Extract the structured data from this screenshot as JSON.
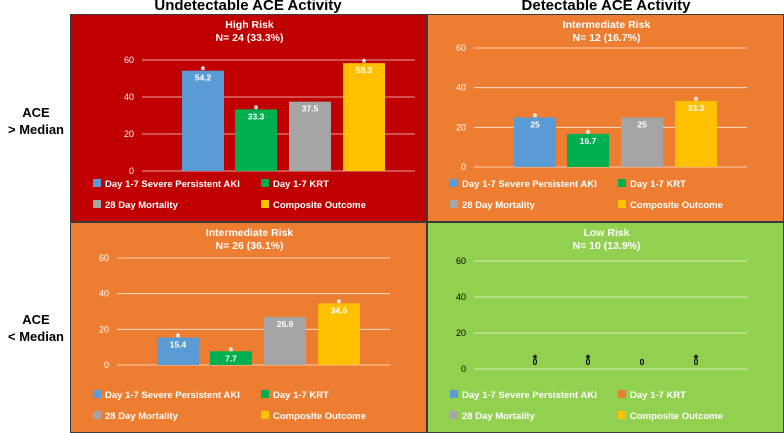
{
  "column_headers": [
    "Undetectable ACE Activity",
    "Detectable ACE Activity"
  ],
  "row_labels": [
    {
      "line1": "ACE",
      "line2": "> Median"
    },
    {
      "line1": "ACE",
      "line2": "< Median"
    }
  ],
  "colors": {
    "high_risk_bg": "#c00000",
    "intermediate_risk_bg": "#ed7d31",
    "low_risk_bg": "#92d050"
  },
  "chart_data": [
    {
      "type": "bar",
      "title": "High Risk",
      "subtitle": "N= 24 (33.3%)",
      "position": "top-left",
      "background": "#c00000",
      "categories": [
        "Day 1-7 Severe Persistent AKI",
        "Day 1-7 KRT",
        "28 Day Mortality",
        "Composite Outcome"
      ],
      "values": [
        54.2,
        33.3,
        37.5,
        58.3
      ],
      "labels": [
        "54.2",
        "33.3",
        "37.5",
        "58.3"
      ],
      "significant": [
        true,
        true,
        false,
        true
      ],
      "colors": [
        "#5b9bd5",
        "#00b050",
        "#a5a5a5",
        "#ffc000"
      ],
      "ylim": [
        0,
        60
      ],
      "yticks": [
        0,
        20,
        40,
        60
      ],
      "grid": true,
      "legend": "bottom"
    },
    {
      "type": "bar",
      "title": "Intermediate Risk",
      "subtitle": "N= 12 (16.7%)",
      "position": "top-right",
      "background": "#ed7d31",
      "categories": [
        "Day 1-7 Severe Persistent AKI",
        "Day 1-7 KRT",
        "28 Day Mortality",
        "Composite Outcome"
      ],
      "values": [
        25,
        16.7,
        25,
        33.3
      ],
      "labels": [
        "25",
        "16.7",
        "25",
        "33.3"
      ],
      "significant": [
        true,
        true,
        false,
        true
      ],
      "colors": [
        "#5b9bd5",
        "#00b050",
        "#a5a5a5",
        "#ffc000"
      ],
      "ylim": [
        0,
        60
      ],
      "yticks": [
        0,
        20,
        40,
        60
      ],
      "grid": true,
      "legend": "bottom"
    },
    {
      "type": "bar",
      "title": "Intermediate Risk",
      "subtitle": "N= 26 (36.1%)",
      "position": "bottom-left",
      "background": "#ed7d31",
      "categories": [
        "Day 1-7 Severe Persistent AKI",
        "Day 1-7 KRT",
        "28 Day Mortality",
        "Composite Outcome"
      ],
      "values": [
        15.4,
        7.7,
        26.9,
        34.6
      ],
      "labels": [
        "15.4",
        "7.7",
        "26.9",
        "34.6"
      ],
      "significant": [
        true,
        true,
        false,
        true
      ],
      "colors": [
        "#5b9bd5",
        "#00b050",
        "#a5a5a5",
        "#ffc000"
      ],
      "ylim": [
        0,
        60
      ],
      "yticks": [
        0,
        20,
        40,
        60
      ],
      "grid": true,
      "legend": "bottom"
    },
    {
      "type": "bar",
      "title": "Low Risk",
      "subtitle": "N= 10 (13.9%)",
      "position": "bottom-right",
      "background": "#92d050",
      "categories": [
        "Day 1-7 Severe Persistent AKI",
        "Day 1-7 KRT",
        "28 Day Mortality",
        "Composite Outcome"
      ],
      "values": [
        0,
        0,
        0,
        0
      ],
      "labels": [
        "0",
        "0",
        "0",
        "0"
      ],
      "significant": [
        true,
        true,
        false,
        true
      ],
      "colors": [
        "#5b9bd5",
        "#ed7d31",
        "#a5a5a5",
        "#ffc000"
      ],
      "ylim": [
        0,
        60
      ],
      "yticks": [
        0,
        20,
        40,
        60
      ],
      "grid": true,
      "legend": "bottom"
    }
  ],
  "significance_marker": "*"
}
